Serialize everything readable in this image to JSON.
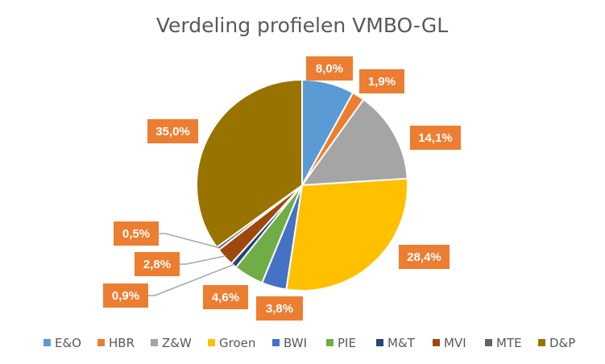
{
  "chart_data": {
    "type": "pie",
    "title": "Verdeling profielen VMBO-GL",
    "legend_position": "bottom",
    "label_color": "#ED7D31",
    "slices": [
      {
        "name": "E&O",
        "value": 8.0,
        "label": "8,0%",
        "color": "#5B9BD5"
      },
      {
        "name": "HBR",
        "value": 1.9,
        "label": "1,9%",
        "color": "#ED7D31"
      },
      {
        "name": "Z&W",
        "value": 14.1,
        "label": "14,1%",
        "color": "#A5A5A5"
      },
      {
        "name": "Groen",
        "value": 28.4,
        "label": "28,4%",
        "color": "#FFC000"
      },
      {
        "name": "BWI",
        "value": 3.8,
        "label": "3,8%",
        "color": "#4472C4"
      },
      {
        "name": "PIE",
        "value": 4.6,
        "label": "4,6%",
        "color": "#70AD47"
      },
      {
        "name": "M&T",
        "value": 0.9,
        "label": "0,9%",
        "color": "#264478"
      },
      {
        "name": "MVI",
        "value": 2.8,
        "label": "2,8%",
        "color": "#9E480E"
      },
      {
        "name": "MTE",
        "value": 0.5,
        "label": "0,5%",
        "color": "#636363"
      },
      {
        "name": "D&P",
        "value": 35.0,
        "label": "35,0%",
        "color": "#997300"
      }
    ]
  }
}
